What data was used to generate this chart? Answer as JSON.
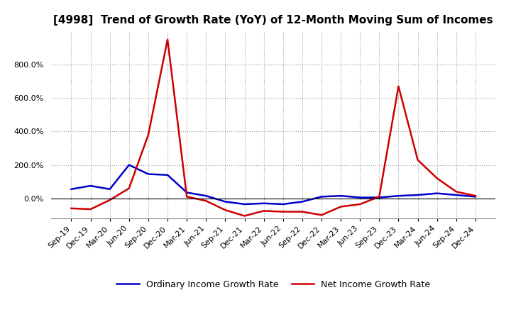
{
  "title": "[4998]  Trend of Growth Rate (YoY) of 12-Month Moving Sum of Incomes",
  "x_labels": [
    "Sep-19",
    "Dec-19",
    "Mar-20",
    "Jun-20",
    "Sep-20",
    "Dec-20",
    "Mar-21",
    "Jun-21",
    "Sep-21",
    "Dec-21",
    "Mar-22",
    "Jun-22",
    "Sep-22",
    "Dec-22",
    "Mar-23",
    "Jun-23",
    "Sep-23",
    "Dec-23",
    "Mar-24",
    "Jun-24",
    "Sep-24",
    "Dec-24"
  ],
  "ordinary_income": [
    55,
    75,
    55,
    200,
    145,
    140,
    35,
    15,
    -20,
    -35,
    -30,
    -35,
    -20,
    10,
    15,
    5,
    5,
    15,
    20,
    30,
    20,
    10
  ],
  "net_income": [
    -60,
    -65,
    -10,
    60,
    380,
    950,
    10,
    -15,
    -70,
    -105,
    -75,
    -80,
    -80,
    -100,
    -50,
    -35,
    10,
    670,
    230,
    120,
    40,
    15
  ],
  "ordinary_color": "#0000cc",
  "net_color": "#cc0000",
  "ylim_min": -120,
  "ylim_max": 1000,
  "yticks": [
    0,
    200,
    400,
    600,
    800
  ],
  "background": "#ffffff",
  "grid_color": "#999999",
  "legend_ordinary": "Ordinary Income Growth Rate",
  "legend_net": "Net Income Growth Rate",
  "title_fontsize": 11,
  "tick_fontsize": 8,
  "legend_fontsize": 9
}
